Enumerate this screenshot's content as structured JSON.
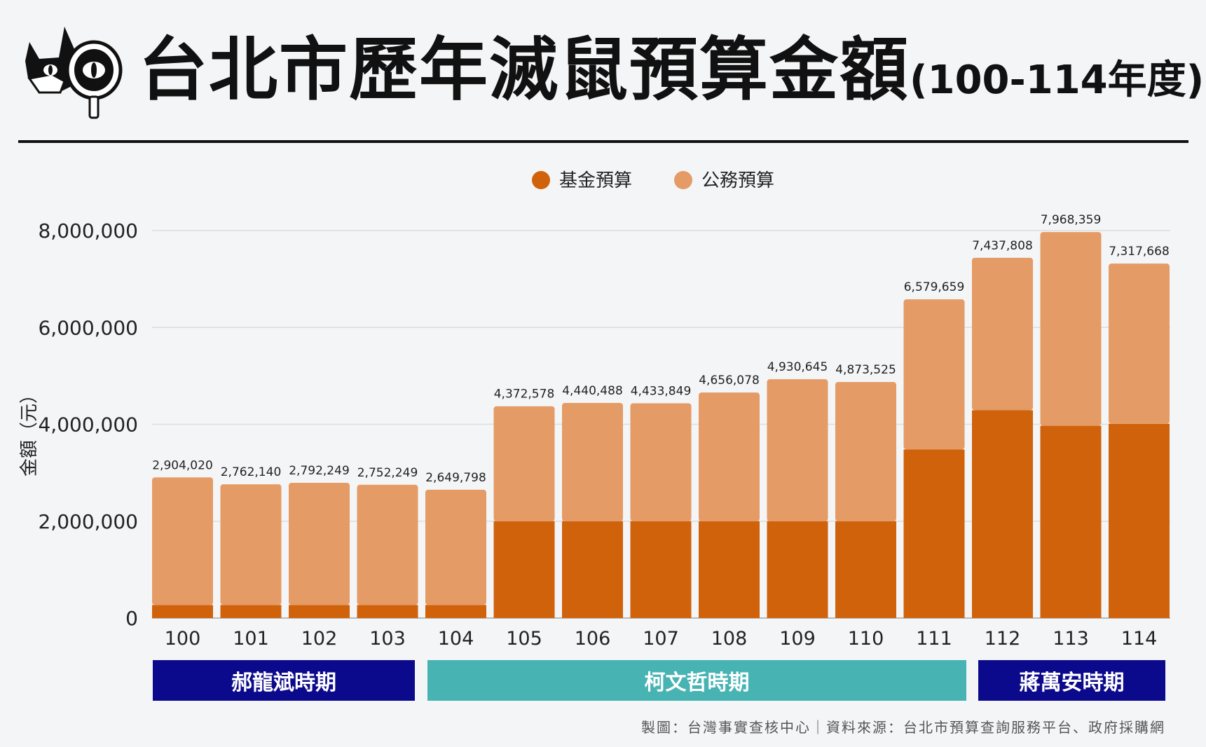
{
  "header": {
    "title": "台北市歷年滅鼠預算金額",
    "subtitle": "(100-114年度)"
  },
  "logo": {
    "icon": "cat-with-magnifier-logo"
  },
  "colors": {
    "fund": "#d0620c",
    "public": "#e59b65",
    "period_hau": "#0c0a8c",
    "period_ko": "#48b3b3",
    "period_chiang": "#0c0a8c"
  },
  "periods": [
    {
      "label": "郝龍斌時期",
      "from": "100",
      "to": "103",
      "color": "#0c0a8c"
    },
    {
      "label": "柯文哲時期",
      "from": "104",
      "to": "111",
      "color": "#48b3b3"
    },
    {
      "label": "蔣萬安時期",
      "from": "112",
      "to": "114",
      "color": "#0c0a8c"
    }
  ],
  "footer": "製圖：台灣事實查核中心｜資料來源：台北市預算查詢服務平台、政府採購網",
  "chart_data": {
    "type": "bar",
    "stacked": true,
    "title": "台北市歷年滅鼠預算金額(100-114年度)",
    "xlabel": "",
    "ylabel": "金額（元）",
    "ylim": [
      0,
      8000000
    ],
    "yticks": [
      0,
      2000000,
      4000000,
      6000000,
      8000000
    ],
    "ytick_labels": [
      "0",
      "2,000,000",
      "4,000,000",
      "6,000,000",
      "8,000,000"
    ],
    "grid": true,
    "legend_position": "top-center",
    "categories": [
      "100",
      "101",
      "102",
      "103",
      "104",
      "105",
      "106",
      "107",
      "108",
      "109",
      "110",
      "111",
      "112",
      "113",
      "114"
    ],
    "series": [
      {
        "name": "基金預算",
        "color": "#d0620c",
        "values": [
          270000,
          270000,
          270000,
          270000,
          270000,
          2000000,
          2000000,
          2000000,
          2000000,
          2000000,
          2000000,
          3480000,
          4290000,
          3970000,
          4010000
        ]
      },
      {
        "name": "公務預算",
        "color": "#e59b65",
        "values": [
          2634020,
          2492140,
          2522249,
          2482249,
          2379798,
          2372578,
          2440488,
          2433849,
          2656078,
          2930645,
          2873525,
          3099659,
          3147808,
          3998359,
          3307668
        ]
      }
    ],
    "totals": [
      2904020,
      2762140,
      2792249,
      2752249,
      2649798,
      4372578,
      4440488,
      4433849,
      4656078,
      4930645,
      4873525,
      6579659,
      7437808,
      7968359,
      7317668
    ],
    "total_labels": [
      "2,904,020",
      "2,762,140",
      "2,792,249",
      "2,752,249",
      "2,649,798",
      "4,372,578",
      "4,440,488",
      "4,433,849",
      "4,656,078",
      "4,930,645",
      "4,873,525",
      "6,579,659",
      "7,437,808",
      "7,968,359",
      "7,317,668"
    ]
  }
}
